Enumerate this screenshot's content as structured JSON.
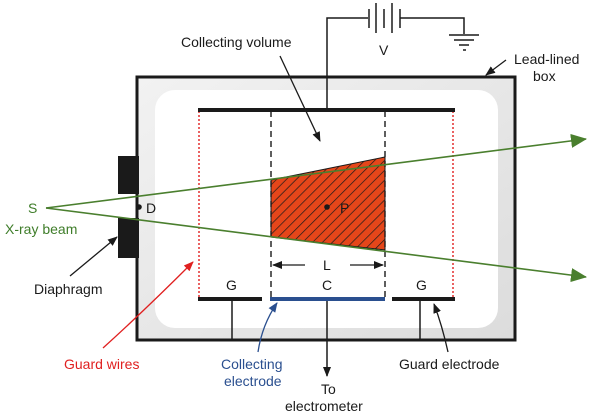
{
  "labels": {
    "collecting_volume": "Collecting volume",
    "voltage": "V",
    "lead_box_line1": "Lead-lined",
    "lead_box_line2": "box",
    "source": "S",
    "xray_beam": "X-ray beam",
    "point_d": "D",
    "point_p": "P",
    "length_l": "L",
    "guard_left": "G",
    "collector": "C",
    "guard_right": "G",
    "diaphragm": "Diaphragm",
    "guard_wires": "Guard wires",
    "collecting_electrode_line1": "Collecting",
    "collecting_electrode_line2": "electrode",
    "guard_electrode": "Guard electrode",
    "to_line1": "To",
    "to_line2": "electrometer"
  },
  "colors": {
    "beam": "#4a7f2e",
    "hatch_fill": "#e5461a",
    "box_fill": "#f0f0f0",
    "box_inner": "#ffffff",
    "guard_wire": "#e02020",
    "collector": "#2a4f8f",
    "ink": "#1a1a1a"
  }
}
